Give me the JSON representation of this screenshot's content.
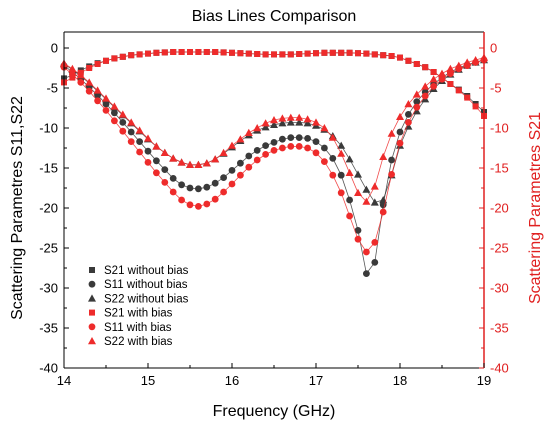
{
  "chart_data": {
    "type": "scatter",
    "title": "Bias Lines Comparison",
    "xlabel": "Frequency (GHz)",
    "ylabel_left": "Scattering Parametres S11,S22",
    "ylabel_right": "Scattering Parametres S21",
    "xlim": [
      14,
      19
    ],
    "ylim": [
      -40,
      2
    ],
    "x_ticks": [
      "14",
      "15",
      "16",
      "17",
      "18",
      "19"
    ],
    "y_ticks_left": [
      "-40",
      "-35",
      "-30",
      "-25",
      "-20",
      "-15",
      "-10",
      "-5",
      "0"
    ],
    "y_ticks_right": [
      "-40",
      "-35",
      "-30",
      "-25",
      "-20",
      "-15",
      "-10",
      "-5",
      "0"
    ],
    "legend_position": "bottom-left",
    "series": [
      {
        "name": "S21 without bias",
        "marker": "square",
        "color": "#3a3a3a",
        "axis": "left",
        "x": [
          14.0,
          14.1,
          14.2,
          14.3,
          14.4,
          14.5,
          14.6,
          14.7,
          14.8,
          14.9,
          15.0,
          15.1,
          15.2,
          15.3,
          15.4,
          15.5,
          15.6,
          15.7,
          15.8,
          15.9,
          16.0,
          16.1,
          16.2,
          16.3,
          16.4,
          16.5,
          16.6,
          16.7,
          16.8,
          16.9,
          17.0,
          17.1,
          17.2,
          17.3,
          17.4,
          17.5,
          17.6,
          17.7,
          17.8,
          17.9,
          18.0,
          18.1,
          18.2,
          18.3,
          18.4,
          18.5,
          18.6,
          18.7,
          18.8,
          18.9,
          19.0
        ],
        "y": [
          -3.8,
          -3.4,
          -2.8,
          -2.3,
          -1.9,
          -1.6,
          -1.3,
          -1.1,
          -0.9,
          -0.8,
          -0.7,
          -0.6,
          -0.55,
          -0.5,
          -0.5,
          -0.5,
          -0.5,
          -0.5,
          -0.5,
          -0.55,
          -0.6,
          -0.65,
          -0.7,
          -0.75,
          -0.8,
          -0.8,
          -0.8,
          -0.8,
          -0.75,
          -0.7,
          -0.65,
          -0.6,
          -0.6,
          -0.6,
          -0.6,
          -0.65,
          -0.7,
          -0.8,
          -0.9,
          -1.0,
          -1.2,
          -1.6,
          -2.0,
          -2.4,
          -3.0,
          -3.7,
          -4.5,
          -5.2,
          -6.0,
          -7.0,
          -8.0
        ]
      },
      {
        "name": "S11 without bias",
        "marker": "circle",
        "color": "#3a3a3a",
        "axis": "left",
        "x": [
          14.0,
          14.1,
          14.2,
          14.3,
          14.4,
          14.5,
          14.6,
          14.7,
          14.8,
          14.9,
          15.0,
          15.1,
          15.2,
          15.3,
          15.4,
          15.5,
          15.6,
          15.7,
          15.8,
          15.9,
          16.0,
          16.1,
          16.2,
          16.3,
          16.4,
          16.5,
          16.6,
          16.7,
          16.8,
          16.9,
          17.0,
          17.1,
          17.2,
          17.3,
          17.4,
          17.5,
          17.6,
          17.7,
          17.8,
          17.9,
          18.0,
          18.1,
          18.2,
          18.3,
          18.4,
          18.5,
          18.6,
          18.7,
          18.8,
          18.9,
          19.0
        ],
        "y": [
          -2.2,
          -3.0,
          -3.9,
          -4.9,
          -5.9,
          -7.0,
          -8.1,
          -9.3,
          -10.5,
          -11.7,
          -12.9,
          -14.1,
          -15.2,
          -16.3,
          -17.1,
          -17.5,
          -17.6,
          -17.4,
          -16.9,
          -16.2,
          -15.3,
          -14.4,
          -13.5,
          -12.8,
          -12.2,
          -11.8,
          -11.4,
          -11.2,
          -11.2,
          -11.3,
          -11.7,
          -12.5,
          -13.8,
          -15.9,
          -19.0,
          -22.8,
          -28.2,
          -26.8,
          -19.6,
          -14.0,
          -10.5,
          -8.3,
          -6.7,
          -5.5,
          -4.5,
          -3.7,
          -3.0,
          -2.5,
          -2.1,
          -1.8,
          -1.5
        ]
      },
      {
        "name": "S22 without bias",
        "marker": "triangle",
        "color": "#3a3a3a",
        "axis": "left",
        "x": [
          14.0,
          14.1,
          14.2,
          14.3,
          14.4,
          14.5,
          14.6,
          14.7,
          14.8,
          14.9,
          15.0,
          15.1,
          15.2,
          15.3,
          15.4,
          15.5,
          15.6,
          15.7,
          15.8,
          15.9,
          16.0,
          16.1,
          16.2,
          16.3,
          16.4,
          16.5,
          16.6,
          16.7,
          16.8,
          16.9,
          17.0,
          17.1,
          17.2,
          17.3,
          17.4,
          17.5,
          17.6,
          17.7,
          17.8,
          17.9,
          18.0,
          18.1,
          18.2,
          18.3,
          18.4,
          18.5,
          18.6,
          18.7,
          18.8,
          18.9,
          19.0
        ],
        "y": [
          -2.0,
          -2.7,
          -3.5,
          -4.4,
          -5.4,
          -6.4,
          -7.4,
          -8.4,
          -9.4,
          -10.4,
          -11.4,
          -12.3,
          -13.1,
          -13.8,
          -14.3,
          -14.6,
          -14.6,
          -14.4,
          -13.9,
          -13.2,
          -12.4,
          -11.6,
          -10.9,
          -10.3,
          -9.9,
          -9.6,
          -9.4,
          -9.3,
          -9.3,
          -9.4,
          -9.7,
          -10.2,
          -11.0,
          -12.2,
          -13.9,
          -15.8,
          -17.7,
          -19.3,
          -19.0,
          -15.9,
          -12.2,
          -9.8,
          -7.9,
          -6.4,
          -5.1,
          -4.1,
          -3.3,
          -2.7,
          -2.2,
          -1.8,
          -1.5
        ]
      },
      {
        "name": "S21 with bias",
        "marker": "square",
        "color": "#ee2b2b",
        "axis": "right",
        "x": [
          14.0,
          14.1,
          14.2,
          14.3,
          14.4,
          14.5,
          14.6,
          14.7,
          14.8,
          14.9,
          15.0,
          15.1,
          15.2,
          15.3,
          15.4,
          15.5,
          15.6,
          15.7,
          15.8,
          15.9,
          16.0,
          16.1,
          16.2,
          16.3,
          16.4,
          16.5,
          16.6,
          16.7,
          16.8,
          16.9,
          17.0,
          17.1,
          17.2,
          17.3,
          17.4,
          17.5,
          17.6,
          17.7,
          17.8,
          17.9,
          18.0,
          18.1,
          18.2,
          18.3,
          18.4,
          18.5,
          18.6,
          18.7,
          18.8,
          18.9,
          19.0
        ],
        "y": [
          -4.3,
          -3.7,
          -3.1,
          -2.5,
          -2.0,
          -1.6,
          -1.3,
          -1.1,
          -0.9,
          -0.8,
          -0.7,
          -0.6,
          -0.55,
          -0.5,
          -0.5,
          -0.5,
          -0.5,
          -0.5,
          -0.5,
          -0.55,
          -0.6,
          -0.65,
          -0.7,
          -0.75,
          -0.8,
          -0.8,
          -0.8,
          -0.8,
          -0.75,
          -0.7,
          -0.65,
          -0.6,
          -0.6,
          -0.6,
          -0.6,
          -0.65,
          -0.7,
          -0.8,
          -0.9,
          -1.0,
          -1.2,
          -1.6,
          -2.0,
          -2.4,
          -3.0,
          -3.7,
          -4.5,
          -5.3,
          -6.2,
          -7.3,
          -8.5
        ]
      },
      {
        "name": "S11 with bias",
        "marker": "circle",
        "color": "#ee2b2b",
        "axis": "left",
        "x": [
          14.0,
          14.1,
          14.2,
          14.3,
          14.4,
          14.5,
          14.6,
          14.7,
          14.8,
          14.9,
          15.0,
          15.1,
          15.2,
          15.3,
          15.4,
          15.5,
          15.6,
          15.7,
          15.8,
          15.9,
          16.0,
          16.1,
          16.2,
          16.3,
          16.4,
          16.5,
          16.6,
          16.7,
          16.8,
          16.9,
          17.0,
          17.1,
          17.2,
          17.3,
          17.4,
          17.5,
          17.6,
          17.7,
          17.8,
          17.9,
          18.0,
          18.1,
          18.2,
          18.3,
          18.4,
          18.5,
          18.6,
          18.7,
          18.8,
          18.9,
          19.0
        ],
        "y": [
          -2.4,
          -3.3,
          -4.3,
          -5.4,
          -6.6,
          -7.8,
          -9.1,
          -10.4,
          -11.7,
          -13.0,
          -14.3,
          -15.6,
          -16.8,
          -18.0,
          -19.0,
          -19.6,
          -19.8,
          -19.5,
          -18.9,
          -18.0,
          -17.0,
          -15.9,
          -14.9,
          -14.0,
          -13.3,
          -12.8,
          -12.5,
          -12.3,
          -12.3,
          -12.5,
          -13.1,
          -14.2,
          -15.9,
          -18.1,
          -21.0,
          -23.9,
          -25.5,
          -24.3,
          -20.5,
          -15.8,
          -11.9,
          -9.3,
          -7.4,
          -6.0,
          -4.8,
          -3.9,
          -3.2,
          -2.6,
          -2.2,
          -1.8,
          -1.5
        ]
      },
      {
        "name": "S22 with bias",
        "marker": "triangle",
        "color": "#ee2b2b",
        "axis": "left",
        "x": [
          14.0,
          14.1,
          14.2,
          14.3,
          14.4,
          14.5,
          14.6,
          14.7,
          14.8,
          14.9,
          15.0,
          15.1,
          15.2,
          15.3,
          15.4,
          15.5,
          15.6,
          15.7,
          15.8,
          15.9,
          16.0,
          16.1,
          16.2,
          16.3,
          16.4,
          16.5,
          16.6,
          16.7,
          16.8,
          16.9,
          17.0,
          17.1,
          17.2,
          17.3,
          17.4,
          17.5,
          17.6,
          17.7,
          17.8,
          17.9,
          18.0,
          18.1,
          18.2,
          18.3,
          18.4,
          18.5,
          18.6,
          18.7,
          18.8,
          18.9,
          19.0
        ],
        "y": [
          -1.9,
          -2.6,
          -3.4,
          -4.3,
          -5.3,
          -6.3,
          -7.3,
          -8.3,
          -9.3,
          -10.3,
          -11.3,
          -12.3,
          -13.1,
          -13.8,
          -14.3,
          -14.6,
          -14.6,
          -14.4,
          -13.9,
          -13.1,
          -12.2,
          -11.4,
          -10.6,
          -10.0,
          -9.4,
          -9.0,
          -8.8,
          -8.7,
          -8.7,
          -8.9,
          -9.3,
          -10.0,
          -11.2,
          -13.2,
          -15.6,
          -18.1,
          -19.2,
          -17.3,
          -13.6,
          -10.7,
          -8.6,
          -7.0,
          -5.8,
          -4.8,
          -3.9,
          -3.2,
          -2.6,
          -2.2,
          -1.8,
          -1.5,
          -1.2
        ]
      }
    ]
  }
}
